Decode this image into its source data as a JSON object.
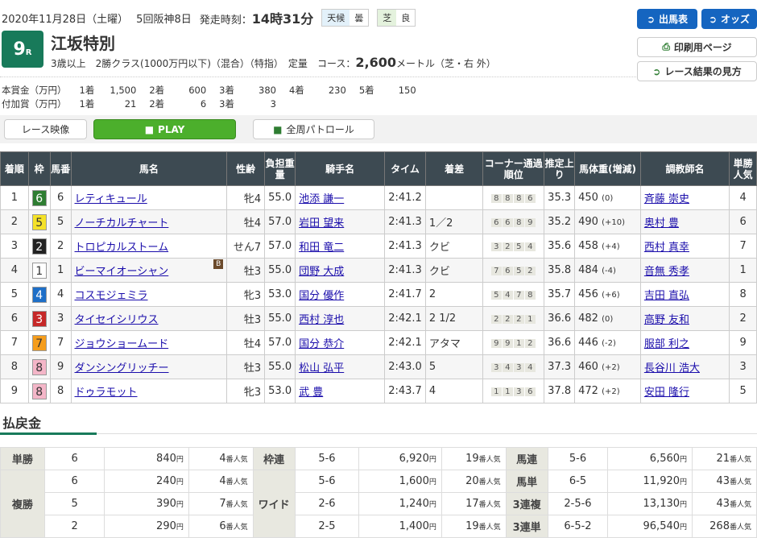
{
  "header": {
    "date": "2020年11月28日（土曜）",
    "meeting": "5回阪神8日",
    "start_label": "発走時刻：",
    "start_time": "14時31分",
    "weather_label": "天候",
    "weather": "曇",
    "track_label": "芝",
    "track_cond": "良",
    "race_no": "9",
    "race_suffix": "R",
    "race_name": "江坂特別",
    "conditions": "3歳以上　2勝クラス(1000万円以下)（混合）（特指）　定量",
    "course_label": "コース：",
    "distance": "2,600",
    "course_suffix": "メートル（芝・右 外）"
  },
  "prize": {
    "main_label": "本賞金（万円）",
    "main": [
      [
        "1着",
        "1,500"
      ],
      [
        "2着",
        "600"
      ],
      [
        "3着",
        "380"
      ],
      [
        "4着",
        "230"
      ],
      [
        "5着",
        "150"
      ]
    ],
    "add_label": "付加賞（万円）",
    "add": [
      [
        "1着",
        "21"
      ],
      [
        "2着",
        "6"
      ],
      [
        "3着",
        "3"
      ]
    ]
  },
  "buttons": {
    "entries": "出馬表",
    "odds": "オッズ",
    "print": "印刷用ページ",
    "howto": "レース結果の見方",
    "video": "レース映像",
    "play": "PLAY",
    "patrol": "全周パトロール"
  },
  "table": {
    "headers": [
      "着順",
      "枠",
      "馬番",
      "馬名",
      "性齢",
      "負担重量",
      "騎手名",
      "タイム",
      "着差",
      "コーナー通過順位",
      "推定上り",
      "馬体重(増減)",
      "調教師名",
      "単勝人気"
    ],
    "rows": [
      {
        "pos": "1",
        "frame": "6",
        "num": "6",
        "horse": "レティキュール",
        "sa": "牝4",
        "wt": "55.0",
        "jockey": "池添 謙一",
        "time": "2:41.2",
        "margin": "",
        "corner": [
          "8",
          "8",
          "8",
          "6"
        ],
        "last": "35.3",
        "bw": "450",
        "bwd": "(0)",
        "trainer": "斉藤 崇史",
        "pop": "4"
      },
      {
        "pos": "2",
        "frame": "5",
        "num": "5",
        "horse": "ノーチカルチャート",
        "sa": "牡4",
        "wt": "57.0",
        "jockey": "岩田 望来",
        "time": "2:41.3",
        "margin": "1／2",
        "corner": [
          "6",
          "6",
          "8",
          "9"
        ],
        "last": "35.2",
        "bw": "490",
        "bwd": "(+10)",
        "trainer": "奥村 豊",
        "pop": "6"
      },
      {
        "pos": "3",
        "frame": "2",
        "num": "2",
        "horse": "トロピカルストーム",
        "sa": "せん7",
        "wt": "57.0",
        "jockey": "和田 竜二",
        "time": "2:41.3",
        "margin": "クビ",
        "corner": [
          "3",
          "2",
          "5",
          "4"
        ],
        "last": "35.6",
        "bw": "458",
        "bwd": "(+4)",
        "trainer": "西村 真幸",
        "pop": "7"
      },
      {
        "pos": "4",
        "frame": "1",
        "num": "1",
        "horse": "ビーマイオーシャン",
        "blinker": "B",
        "sa": "牡3",
        "wt": "55.0",
        "jockey": "団野 大成",
        "time": "2:41.3",
        "margin": "クビ",
        "corner": [
          "7",
          "6",
          "5",
          "2"
        ],
        "last": "35.8",
        "bw": "484",
        "bwd": "(-4)",
        "trainer": "音無 秀孝",
        "pop": "1"
      },
      {
        "pos": "5",
        "frame": "4",
        "num": "4",
        "horse": "コスモジェミラ",
        "sa": "牝3",
        "wt": "53.0",
        "jockey": "国分 優作",
        "time": "2:41.7",
        "margin": "2",
        "corner": [
          "5",
          "4",
          "7",
          "8"
        ],
        "last": "35.7",
        "bw": "456",
        "bwd": "(+6)",
        "trainer": "吉田 直弘",
        "pop": "8"
      },
      {
        "pos": "6",
        "frame": "3",
        "num": "3",
        "horse": "タイセイシリウス",
        "sa": "牡3",
        "wt": "55.0",
        "jockey": "西村 淳也",
        "time": "2:42.1",
        "margin": "2 1/2",
        "corner": [
          "2",
          "2",
          "2",
          "1"
        ],
        "last": "36.6",
        "bw": "482",
        "bwd": "(0)",
        "trainer": "高野 友和",
        "pop": "2"
      },
      {
        "pos": "7",
        "frame": "7",
        "num": "7",
        "horse": "ジョウショームード",
        "sa": "牡4",
        "wt": "57.0",
        "jockey": "国分 恭介",
        "time": "2:42.1",
        "margin": "アタマ",
        "corner": [
          "9",
          "9",
          "1",
          "2"
        ],
        "last": "36.6",
        "bw": "446",
        "bwd": "(-2)",
        "trainer": "服部 利之",
        "pop": "9"
      },
      {
        "pos": "8",
        "frame": "8",
        "num": "9",
        "horse": "ダンシングリッチー",
        "sa": "牡3",
        "wt": "55.0",
        "jockey": "松山 弘平",
        "time": "2:43.0",
        "margin": "5",
        "corner": [
          "3",
          "4",
          "3",
          "4"
        ],
        "last": "37.3",
        "bw": "460",
        "bwd": "(+2)",
        "trainer": "長谷川 浩大",
        "pop": "3"
      },
      {
        "pos": "9",
        "frame": "8",
        "num": "8",
        "horse": "ドゥラモット",
        "sa": "牝3",
        "wt": "53.0",
        "jockey": "武 豊",
        "time": "2:43.7",
        "margin": "4",
        "corner": [
          "1",
          "1",
          "3",
          "6"
        ],
        "last": "37.8",
        "bw": "472",
        "bwd": "(+2)",
        "trainer": "安田 隆行",
        "pop": "5"
      }
    ]
  },
  "frame_colors": {
    "1": [
      "#ffffff",
      "#333"
    ],
    "2": [
      "#222222",
      "#fff"
    ],
    "3": [
      "#c62828",
      "#fff"
    ],
    "4": [
      "#1e6fc8",
      "#fff"
    ],
    "5": [
      "#f5e228",
      "#333"
    ],
    "6": [
      "#2e7d32",
      "#fff"
    ],
    "7": [
      "#f59d1c",
      "#333"
    ],
    "8": [
      "#f4b6c8",
      "#333"
    ]
  },
  "payout": {
    "title": "払戻金",
    "yen": "円",
    "pop_suffix": "番人気",
    "tansho": {
      "label": "単勝",
      "rows": [
        [
          "6",
          "840",
          "4"
        ]
      ]
    },
    "fukusho": {
      "label": "複勝",
      "rows": [
        [
          "6",
          "240",
          "4"
        ],
        [
          "5",
          "390",
          "7"
        ],
        [
          "2",
          "290",
          "6"
        ]
      ]
    },
    "wakuren": {
      "label": "枠連",
      "rows": [
        [
          "5-6",
          "6,920",
          "19"
        ]
      ]
    },
    "wide": {
      "label": "ワイド",
      "rows": [
        [
          "5-6",
          "1,600",
          "20"
        ],
        [
          "2-6",
          "1,240",
          "17"
        ],
        [
          "2-5",
          "1,400",
          "19"
        ]
      ]
    },
    "umaren": {
      "label": "馬連",
      "rows": [
        [
          "5-6",
          "6,560",
          "21"
        ]
      ]
    },
    "umatan": {
      "label": "馬単",
      "rows": [
        [
          "6-5",
          "11,920",
          "43"
        ]
      ]
    },
    "sanrenpuku": {
      "label": "3連複",
      "rows": [
        [
          "2-5-6",
          "13,130",
          "43"
        ]
      ]
    },
    "sanrentan": {
      "label": "3連単",
      "rows": [
        [
          "6-5-2",
          "96,540",
          "268"
        ]
      ]
    }
  }
}
